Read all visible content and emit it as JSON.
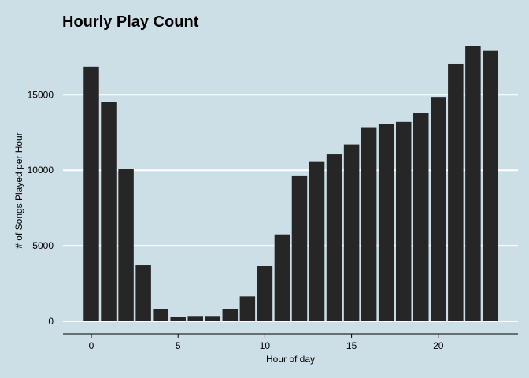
{
  "chart_data": {
    "type": "bar",
    "title": "Hourly Play Count",
    "xlabel": "Hour of day",
    "ylabel": "# of Songs Played per Hour",
    "x": [
      0,
      1,
      2,
      3,
      4,
      5,
      6,
      7,
      8,
      9,
      10,
      11,
      12,
      13,
      14,
      15,
      16,
      17,
      18,
      19,
      20,
      21,
      22,
      23
    ],
    "values": [
      16850,
      14500,
      10100,
      3700,
      800,
      300,
      350,
      350,
      800,
      1650,
      3650,
      5750,
      9650,
      10550,
      11050,
      11700,
      12850,
      13050,
      13200,
      13800,
      14850,
      17050,
      18200,
      17900
    ],
    "xticks": [
      0,
      5,
      10,
      15,
      20
    ],
    "yticks": [
      0,
      5000,
      10000,
      15000
    ],
    "xlim": [
      -1,
      24
    ],
    "ylim": [
      0,
      19000
    ],
    "grid": "horizontal",
    "colors": {
      "background": "#cddfe6",
      "bar": "#262626",
      "grid": "#ffffff",
      "axis": "#000000"
    }
  }
}
